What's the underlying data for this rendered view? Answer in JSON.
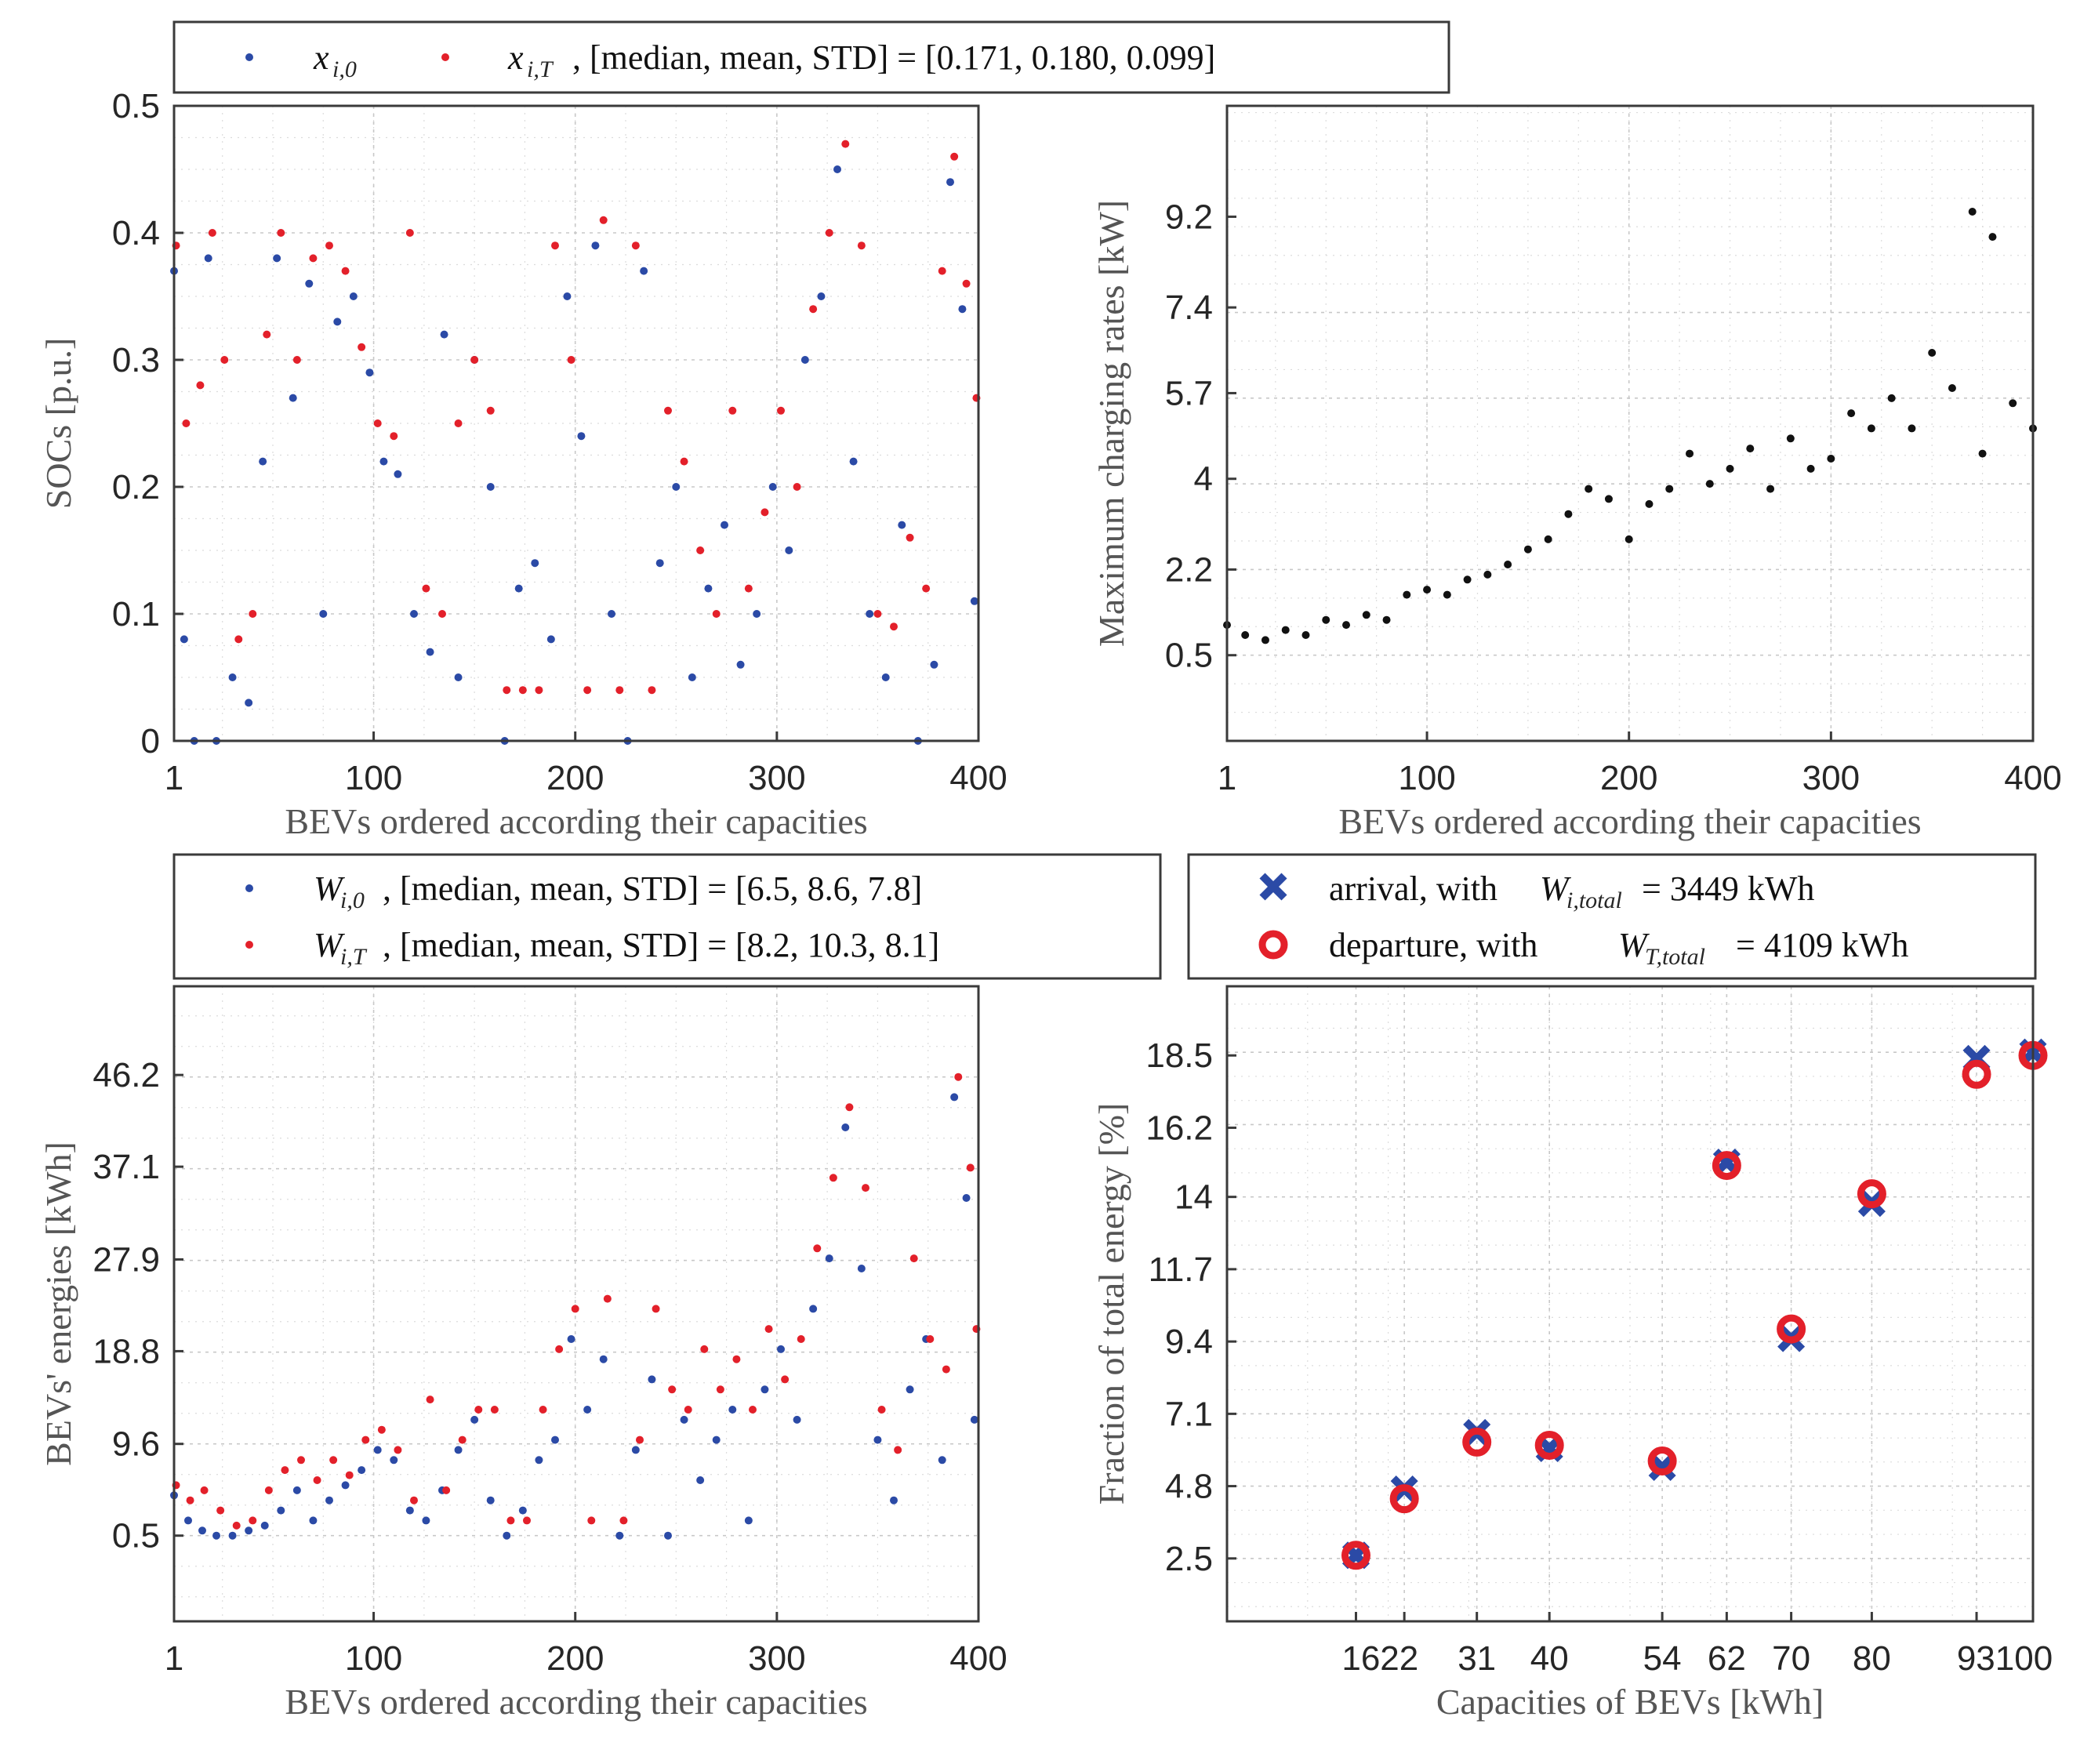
{
  "colors": {
    "blue": "#2b4aa6",
    "red": "#e3202a",
    "black": "#111111",
    "axis": "#3a3a3a",
    "grid": "#c8c8c8"
  },
  "legend_soc": {
    "x0_label": "x",
    "x0_sub": "i,0",
    "xT_label": "x",
    "xT_sub": "i,T",
    "xT_rest": ", [median, mean, STD] = [0.171, 0.180, 0.099]"
  },
  "legend_energy": {
    "w0_label": "W",
    "w0_sub": "i,0",
    "w0_rest": ", [median, mean, STD] = [6.5, 8.6, 7.8]",
    "wT_label": "W",
    "wT_sub": "i,T",
    "wT_rest": ", [median, mean, STD] = [8.2, 10.3, 8.1]"
  },
  "legend_fraction": {
    "arrival_pre": "arrival, with ",
    "arrival_sym": "W",
    "arrival_sub": "i,total",
    "arrival_rest": " = 3449 kWh",
    "departure_pre": "departure, with ",
    "departure_sym": "W",
    "departure_sub": "T,total",
    "departure_rest": " = 4109 kWh"
  },
  "chart_data": [
    {
      "id": "soc",
      "type": "scatter",
      "title": "",
      "xlabel": "BEVs ordered according their capacities",
      "ylabel": "SOCs [p.u.]",
      "xlim": [
        1,
        400
      ],
      "ylim": [
        0,
        0.5
      ],
      "xticks": [
        1,
        100,
        200,
        300,
        400
      ],
      "xtick_labels": [
        "1",
        "100",
        "200",
        "300",
        "400"
      ],
      "yticks": [
        0,
        0.1,
        0.2,
        0.3,
        0.4,
        0.5
      ],
      "ytick_labels": [
        "0",
        "0.1",
        "0.2",
        "0.3",
        "0.4",
        "0.5"
      ],
      "series": [
        {
          "name": "x_i,0",
          "color": "#2b4aa6",
          "x": [
            1,
            6,
            11,
            18,
            22,
            30,
            38,
            45,
            52,
            60,
            68,
            75,
            82,
            90,
            98,
            105,
            112,
            120,
            128,
            135,
            142,
            150,
            158,
            165,
            172,
            180,
            188,
            196,
            203,
            210,
            218,
            226,
            234,
            242,
            250,
            258,
            266,
            274,
            282,
            290,
            298,
            306,
            314,
            322,
            330,
            338,
            346,
            354,
            362,
            370,
            378,
            386,
            392,
            398
          ],
          "y": [
            0.37,
            0.08,
            0.0,
            0.38,
            0.0,
            0.05,
            0.03,
            0.22,
            0.38,
            0.27,
            0.36,
            0.1,
            0.33,
            0.35,
            0.29,
            0.22,
            0.21,
            0.1,
            0.07,
            0.32,
            0.05,
            0.3,
            0.2,
            0.0,
            0.12,
            0.14,
            0.08,
            0.35,
            0.24,
            0.39,
            0.1,
            0.0,
            0.37,
            0.14,
            0.2,
            0.05,
            0.12,
            0.17,
            0.06,
            0.1,
            0.2,
            0.15,
            0.3,
            0.35,
            0.45,
            0.22,
            0.1,
            0.05,
            0.17,
            0.0,
            0.06,
            0.44,
            0.34,
            0.11
          ]
        },
        {
          "name": "x_i,T",
          "color": "#e3202a",
          "x": [
            2,
            7,
            14,
            20,
            26,
            33,
            40,
            47,
            54,
            62,
            70,
            78,
            86,
            94,
            102,
            110,
            118,
            126,
            134,
            142,
            150,
            158,
            166,
            174,
            182,
            190,
            198,
            206,
            214,
            222,
            230,
            238,
            246,
            254,
            262,
            270,
            278,
            286,
            294,
            302,
            310,
            318,
            326,
            334,
            342,
            350,
            358,
            366,
            374,
            382,
            388,
            394,
            399
          ],
          "y": [
            0.39,
            0.25,
            0.28,
            0.4,
            0.3,
            0.08,
            0.1,
            0.32,
            0.4,
            0.3,
            0.38,
            0.39,
            0.37,
            0.31,
            0.25,
            0.24,
            0.4,
            0.12,
            0.1,
            0.25,
            0.3,
            0.26,
            0.04,
            0.04,
            0.04,
            0.39,
            0.3,
            0.04,
            0.41,
            0.04,
            0.39,
            0.04,
            0.26,
            0.22,
            0.15,
            0.1,
            0.26,
            0.12,
            0.18,
            0.26,
            0.2,
            0.34,
            0.4,
            0.47,
            0.39,
            0.1,
            0.09,
            0.16,
            0.12,
            0.37,
            0.46,
            0.36,
            0.27
          ]
        }
      ]
    },
    {
      "id": "rates",
      "type": "scatter",
      "title": "",
      "xlabel": "BEVs ordered according their capacities",
      "ylabel": "Maximum charging rates [kW]",
      "xlim": [
        1,
        400
      ],
      "ylim": [
        -1.2,
        11.4
      ],
      "xticks": [
        1,
        100,
        200,
        300,
        400
      ],
      "xtick_labels": [
        "1",
        "100",
        "200",
        "300",
        "400"
      ],
      "yticks": [
        0.5,
        2.2,
        4,
        5.7,
        7.4,
        9.2
      ],
      "ytick_labels": [
        "0.5",
        "2.2",
        "4",
        "5.7",
        "7.4",
        "9.2"
      ],
      "series": [
        {
          "name": "max rate",
          "color": "#111111",
          "x": [
            1,
            10,
            20,
            30,
            40,
            50,
            60,
            70,
            80,
            90,
            100,
            110,
            120,
            130,
            140,
            150,
            160,
            170,
            180,
            190,
            200,
            210,
            220,
            230,
            240,
            250,
            260,
            270,
            280,
            290,
            300,
            310,
            320,
            330,
            340,
            350,
            360,
            370,
            375,
            380,
            390,
            400
          ],
          "y": [
            1.1,
            0.9,
            0.8,
            1.0,
            0.9,
            1.2,
            1.1,
            1.3,
            1.2,
            1.7,
            1.8,
            1.7,
            2.0,
            2.1,
            2.3,
            2.6,
            2.8,
            3.3,
            3.8,
            3.6,
            2.8,
            3.5,
            3.8,
            4.5,
            3.9,
            4.2,
            4.6,
            3.8,
            4.8,
            4.2,
            4.4,
            5.3,
            5.0,
            5.6,
            5.0,
            6.5,
            5.8,
            9.3,
            4.5,
            8.8,
            5.5,
            5.0
          ]
        }
      ]
    },
    {
      "id": "energies",
      "type": "scatter",
      "title": "",
      "xlabel": "BEVs ordered according their capacities",
      "ylabel": "BEVs' energies [kWh]",
      "xlim": [
        1,
        400
      ],
      "ylim": [
        -8,
        55
      ],
      "xticks": [
        1,
        100,
        200,
        300,
        400
      ],
      "xtick_labels": [
        "1",
        "100",
        "200",
        "300",
        "400"
      ],
      "yticks": [
        0.5,
        9.6,
        18.8,
        27.9,
        37.1,
        46.2
      ],
      "ytick_labels": [
        "0.5",
        "9.6",
        "18.8",
        "27.9",
        "37.1",
        "46.2"
      ],
      "series": [
        {
          "name": "W_i,0",
          "color": "#2b4aa6",
          "x": [
            1,
            8,
            15,
            22,
            30,
            38,
            46,
            54,
            62,
            70,
            78,
            86,
            94,
            102,
            110,
            118,
            126,
            134,
            142,
            150,
            158,
            166,
            174,
            182,
            190,
            198,
            206,
            214,
            222,
            230,
            238,
            246,
            254,
            262,
            270,
            278,
            286,
            294,
            302,
            310,
            318,
            326,
            334,
            342,
            350,
            358,
            366,
            374,
            382,
            388,
            394,
            398
          ],
          "y": [
            4.5,
            2.0,
            1.0,
            0.5,
            0.5,
            1.0,
            1.5,
            3.0,
            5.0,
            2.0,
            4.0,
            5.5,
            7.0,
            9.0,
            8.0,
            3.0,
            2.0,
            5.0,
            9.0,
            12.0,
            4.0,
            0.5,
            3.0,
            8.0,
            10.0,
            20.0,
            13.0,
            18.0,
            0.5,
            9.0,
            16.0,
            0.5,
            12.0,
            6.0,
            10.0,
            13.0,
            2.0,
            15.0,
            19.0,
            12.0,
            23.0,
            28.0,
            41.0,
            27.0,
            10.0,
            4.0,
            15.0,
            20.0,
            8.0,
            44.0,
            34.0,
            12.0
          ]
        },
        {
          "name": "W_i,T",
          "color": "#e3202a",
          "x": [
            2,
            9,
            16,
            24,
            32,
            40,
            48,
            56,
            64,
            72,
            80,
            88,
            96,
            104,
            112,
            120,
            128,
            136,
            144,
            152,
            160,
            168,
            176,
            184,
            192,
            200,
            208,
            216,
            224,
            232,
            240,
            248,
            256,
            264,
            272,
            280,
            288,
            296,
            304,
            312,
            320,
            328,
            336,
            344,
            352,
            360,
            368,
            376,
            384,
            390,
            396,
            399
          ],
          "y": [
            5.5,
            4.0,
            5.0,
            3.0,
            1.5,
            2.0,
            5.0,
            7.0,
            8.0,
            6.0,
            8.0,
            6.5,
            10.0,
            11.0,
            9.0,
            4.0,
            14.0,
            5.0,
            10.0,
            13.0,
            13.0,
            2.0,
            2.0,
            13.0,
            19.0,
            23.0,
            2.0,
            24.0,
            2.0,
            10.0,
            23.0,
            15.0,
            13.0,
            19.0,
            15.0,
            18.0,
            13.0,
            21.0,
            16.0,
            20.0,
            29.0,
            36.0,
            43.0,
            35.0,
            13.0,
            9.0,
            28.0,
            20.0,
            17.0,
            46.0,
            37.0,
            21.0
          ]
        }
      ]
    },
    {
      "id": "fraction",
      "type": "scatter",
      "title": "",
      "xlabel": "Capacities of BEVs [kWh]",
      "ylabel": "Fraction of total energy [%]",
      "xlim": [
        0,
        100
      ],
      "ylim": [
        0.5,
        20.7
      ],
      "xticks": [
        16,
        22,
        31,
        40,
        54,
        62,
        70,
        80,
        93,
        100
      ],
      "xtick_labels": [
        "16",
        "22",
        "31",
        "40",
        "54",
        "62",
        "70",
        "80",
        "93",
        "100"
      ],
      "xtick_display": [
        "1622",
        "31",
        "40",
        "54",
        "62",
        "70",
        "80",
        "93100"
      ],
      "yticks": [
        2.5,
        4.8,
        7.1,
        9.4,
        11.7,
        14,
        16.2,
        18.5
      ],
      "ytick_labels": [
        "2.5",
        "4.8",
        "7.1",
        "9.4",
        "11.7",
        "14",
        "16.2",
        "18.5"
      ],
      "series": [
        {
          "name": "arrival",
          "color": "#2b4aa6",
          "marker": "x",
          "x": [
            16,
            22,
            31,
            40,
            54,
            62,
            70,
            80,
            93,
            100
          ],
          "y": [
            2.6,
            4.7,
            6.5,
            6.0,
            5.4,
            15.1,
            9.5,
            13.8,
            18.4,
            18.6
          ]
        },
        {
          "name": "departure",
          "color": "#e3202a",
          "marker": "o",
          "x": [
            16,
            22,
            31,
            40,
            54,
            62,
            70,
            80,
            93,
            100
          ],
          "y": [
            2.6,
            4.4,
            6.2,
            6.1,
            5.6,
            15.0,
            9.8,
            14.1,
            17.9,
            18.5
          ]
        }
      ]
    }
  ]
}
